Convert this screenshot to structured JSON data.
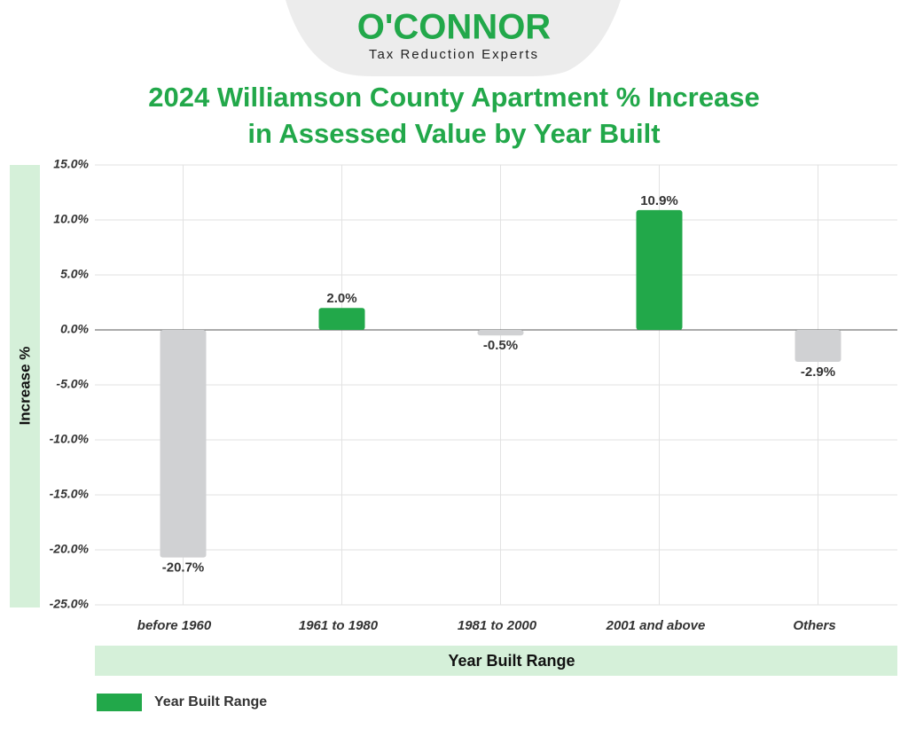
{
  "logo": {
    "name": "O'CONNOR",
    "tagline": "Tax Reduction Experts"
  },
  "chart_data": {
    "type": "bar",
    "title": [
      "2024 Williamson County Apartment % Increase",
      "in Assessed Value by Year Built"
    ],
    "x_label": "Year Built Range",
    "y_label": "Increase %",
    "categories": [
      "before 1960",
      "1961 to 1980",
      "1981 to 2000",
      "2001 and above",
      "Others"
    ],
    "series": [
      {
        "name": "Year Built Range",
        "color": "#22a84a",
        "values": [
          -20.7,
          2.0,
          -0.5,
          10.9,
          -2.9
        ],
        "value_labels": [
          "-20.7%",
          "2.0%",
          "-0.5%",
          "10.9%",
          "-2.9%"
        ]
      }
    ],
    "bar_colors": [
      "#d0d1d3",
      "#22a84a",
      "#d0d1d3",
      "#22a84a",
      "#d0d1d3"
    ],
    "ylim": [
      -25,
      15
    ],
    "yticks": [
      {
        "value": -25,
        "label": "-25.0%"
      },
      {
        "value": -20,
        "label": "-20.0%"
      },
      {
        "value": -15,
        "label": "-15.0%"
      },
      {
        "value": -10,
        "label": "-10.0%"
      },
      {
        "value": -5,
        "label": "-5.0%"
      },
      {
        "value": 0,
        "label": "0.0%"
      },
      {
        "value": 5,
        "label": "5.0%"
      },
      {
        "value": 10,
        "label": "10.0%"
      },
      {
        "value": 15,
        "label": "15.0%"
      }
    ],
    "grid": true,
    "legend": "bottom-left"
  }
}
